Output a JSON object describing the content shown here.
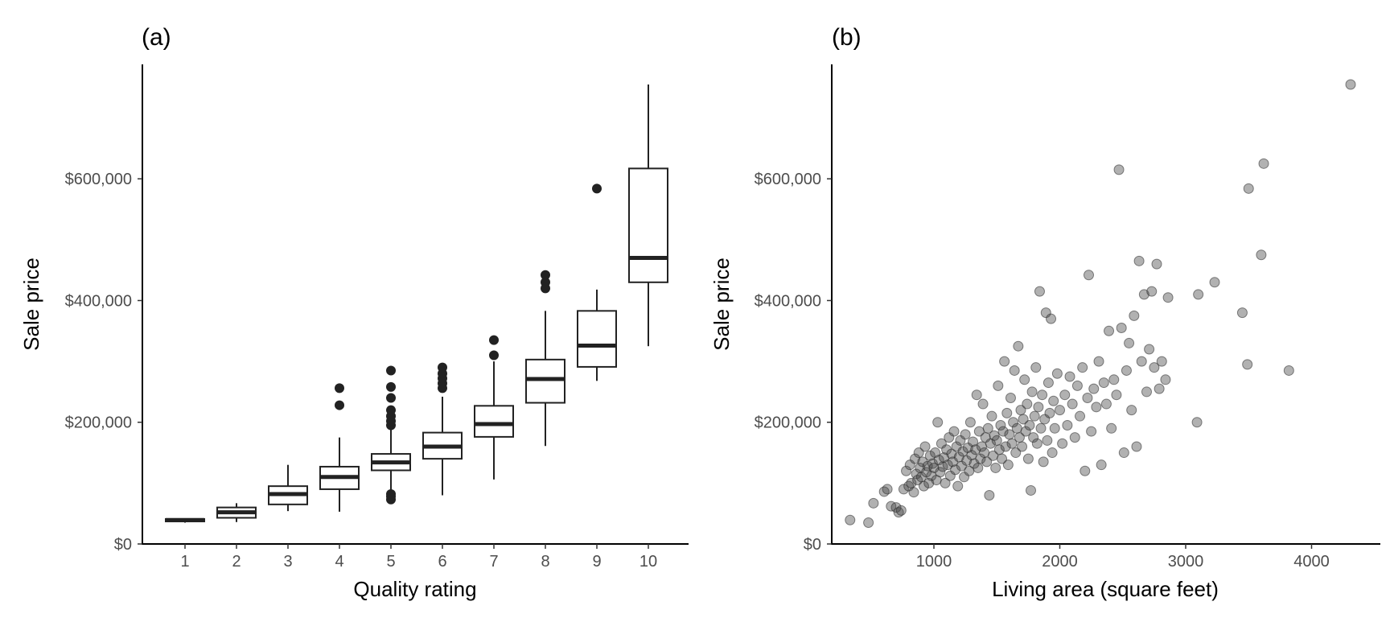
{
  "chart_data": [
    {
      "type": "box",
      "panel_label": "(a)",
      "xlabel": "Quality rating",
      "ylabel": "Sale price",
      "ylim": [
        0,
        755000
      ],
      "y_ticks": [
        0,
        200000,
        400000,
        600000
      ],
      "y_tick_labels": [
        "$0",
        "$200,000",
        "$400,000",
        "$600,000"
      ],
      "categories": [
        "1",
        "2",
        "3",
        "4",
        "5",
        "6",
        "7",
        "8",
        "9",
        "10"
      ],
      "boxes": [
        {
          "q1": 37000,
          "median": 39300,
          "q3": 41000,
          "whisker_low": 35000,
          "whisker_high": 42000,
          "outliers": []
        },
        {
          "q1": 43000,
          "median": 52000,
          "q3": 60000,
          "whisker_low": 36000,
          "whisker_high": 67000,
          "outliers": []
        },
        {
          "q1": 65000,
          "median": 82000,
          "q3": 95000,
          "whisker_low": 54000,
          "whisker_high": 130000,
          "outliers": []
        },
        {
          "q1": 90000,
          "median": 110000,
          "q3": 127000,
          "whisker_low": 53000,
          "whisker_high": 175000,
          "outliers": [
            228000,
            256000
          ]
        },
        {
          "q1": 121000,
          "median": 134000,
          "q3": 148000,
          "whisker_low": 85000,
          "whisker_high": 190000,
          "outliers": [
            73000,
            78000,
            82000,
            195000,
            202000,
            210000,
            220000,
            240000,
            258000,
            285000
          ]
        },
        {
          "q1": 140000,
          "median": 160000,
          "q3": 183000,
          "whisker_low": 80000,
          "whisker_high": 242000,
          "outliers": [
            256000,
            264000,
            272000,
            280000,
            290000
          ]
        },
        {
          "q1": 176000,
          "median": 197000,
          "q3": 227000,
          "whisker_low": 106000,
          "whisker_high": 300000,
          "outliers": [
            310000,
            335000
          ]
        },
        {
          "q1": 232000,
          "median": 271000,
          "q3": 303000,
          "whisker_low": 161000,
          "whisker_high": 383000,
          "outliers": [
            420000,
            430000,
            442000
          ]
        },
        {
          "q1": 291000,
          "median": 326000,
          "q3": 383000,
          "whisker_low": 268000,
          "whisker_high": 418000,
          "outliers": [
            584000
          ]
        },
        {
          "q1": 430000,
          "median": 470000,
          "q3": 617000,
          "whisker_low": 325000,
          "whisker_high": 755000,
          "outliers": []
        }
      ]
    },
    {
      "type": "scatter",
      "panel_label": "(b)",
      "xlabel": "Living area (square feet)",
      "ylabel": "Sale price",
      "xlim": [
        300,
        4400
      ],
      "ylim": [
        0,
        755000
      ],
      "x_ticks": [
        1000,
        2000,
        3000,
        4000
      ],
      "x_tick_labels": [
        "1000",
        "2000",
        "3000",
        "4000"
      ],
      "y_ticks": [
        0,
        200000,
        400000,
        600000
      ],
      "y_tick_labels": [
        "$0",
        "$200,000",
        "$400,000",
        "$600,000"
      ],
      "points": [
        [
          334,
          39300
        ],
        [
          480,
          35000
        ],
        [
          520,
          67000
        ],
        [
          605,
          86000
        ],
        [
          630,
          90000
        ],
        [
          660,
          62000
        ],
        [
          700,
          60000
        ],
        [
          720,
          52000
        ],
        [
          740,
          55000
        ],
        [
          760,
          90000
        ],
        [
          780,
          120000
        ],
        [
          800,
          95000
        ],
        [
          810,
          130000
        ],
        [
          820,
          100000
        ],
        [
          840,
          85000
        ],
        [
          850,
          140000
        ],
        [
          860,
          115000
        ],
        [
          870,
          105000
        ],
        [
          880,
          150000
        ],
        [
          890,
          125000
        ],
        [
          900,
          110000
        ],
        [
          910,
          135000
        ],
        [
          920,
          95000
        ],
        [
          930,
          160000
        ],
        [
          940,
          118000
        ],
        [
          950,
          128000
        ],
        [
          960,
          100000
        ],
        [
          970,
          145000
        ],
        [
          980,
          112000
        ],
        [
          990,
          132000
        ],
        [
          1000,
          125000
        ],
        [
          1010,
          150000
        ],
        [
          1020,
          105000
        ],
        [
          1030,
          200000
        ],
        [
          1040,
          138000
        ],
        [
          1050,
          118000
        ],
        [
          1060,
          165000
        ],
        [
          1070,
          127000
        ],
        [
          1080,
          142000
        ],
        [
          1090,
          100000
        ],
        [
          1100,
          155000
        ],
        [
          1110,
          130000
        ],
        [
          1120,
          175000
        ],
        [
          1130,
          112000
        ],
        [
          1140,
          148000
        ],
        [
          1150,
          135000
        ],
        [
          1160,
          185000
        ],
        [
          1170,
          122000
        ],
        [
          1180,
          160000
        ],
        [
          1190,
          95000
        ],
        [
          1200,
          143000
        ],
        [
          1210,
          170000
        ],
        [
          1220,
          128000
        ],
        [
          1230,
          152000
        ],
        [
          1240,
          110000
        ],
        [
          1250,
          180000
        ],
        [
          1260,
          137000
        ],
        [
          1270,
          158000
        ],
        [
          1280,
          120000
        ],
        [
          1290,
          200000
        ],
        [
          1300,
          146000
        ],
        [
          1310,
          168000
        ],
        [
          1320,
          132000
        ],
        [
          1330,
          155000
        ],
        [
          1340,
          245000
        ],
        [
          1350,
          125000
        ],
        [
          1360,
          185000
        ],
        [
          1370,
          140000
        ],
        [
          1380,
          160000
        ],
        [
          1390,
          230000
        ],
        [
          1400,
          150000
        ],
        [
          1410,
          175000
        ],
        [
          1420,
          135000
        ],
        [
          1430,
          190000
        ],
        [
          1440,
          80000
        ],
        [
          1450,
          165000
        ],
        [
          1460,
          210000
        ],
        [
          1470,
          145000
        ],
        [
          1480,
          178000
        ],
        [
          1490,
          125000
        ],
        [
          1500,
          170000
        ],
        [
          1510,
          260000
        ],
        [
          1520,
          155000
        ],
        [
          1530,
          195000
        ],
        [
          1540,
          140000
        ],
        [
          1550,
          185000
        ],
        [
          1560,
          300000
        ],
        [
          1570,
          160000
        ],
        [
          1580,
          215000
        ],
        [
          1590,
          130000
        ],
        [
          1600,
          180000
        ],
        [
          1610,
          240000
        ],
        [
          1620,
          165000
        ],
        [
          1630,
          200000
        ],
        [
          1640,
          285000
        ],
        [
          1650,
          150000
        ],
        [
          1660,
          190000
        ],
        [
          1670,
          325000
        ],
        [
          1680,
          175000
        ],
        [
          1690,
          220000
        ],
        [
          1700,
          160000
        ],
        [
          1710,
          205000
        ],
        [
          1720,
          270000
        ],
        [
          1730,
          185000
        ],
        [
          1740,
          230000
        ],
        [
          1750,
          140000
        ],
        [
          1760,
          195000
        ],
        [
          1770,
          88000
        ],
        [
          1780,
          250000
        ],
        [
          1790,
          175000
        ],
        [
          1800,
          210000
        ],
        [
          1810,
          290000
        ],
        [
          1820,
          165000
        ],
        [
          1830,
          225000
        ],
        [
          1840,
          415000
        ],
        [
          1850,
          190000
        ],
        [
          1860,
          245000
        ],
        [
          1870,
          135000
        ],
        [
          1880,
          205000
        ],
        [
          1890,
          380000
        ],
        [
          1900,
          170000
        ],
        [
          1910,
          265000
        ],
        [
          1920,
          215000
        ],
        [
          1930,
          370000
        ],
        [
          1940,
          150000
        ],
        [
          1950,
          235000
        ],
        [
          1960,
          190000
        ],
        [
          1980,
          280000
        ],
        [
          2000,
          220000
        ],
        [
          2020,
          165000
        ],
        [
          2040,
          245000
        ],
        [
          2060,
          195000
        ],
        [
          2080,
          275000
        ],
        [
          2100,
          230000
        ],
        [
          2120,
          175000
        ],
        [
          2140,
          260000
        ],
        [
          2160,
          210000
        ],
        [
          2180,
          290000
        ],
        [
          2200,
          120000
        ],
        [
          2220,
          240000
        ],
        [
          2230,
          442000
        ],
        [
          2250,
          185000
        ],
        [
          2270,
          255000
        ],
        [
          2290,
          225000
        ],
        [
          2310,
          300000
        ],
        [
          2330,
          130000
        ],
        [
          2350,
          265000
        ],
        [
          2370,
          230000
        ],
        [
          2390,
          350000
        ],
        [
          2410,
          190000
        ],
        [
          2430,
          270000
        ],
        [
          2450,
          245000
        ],
        [
          2470,
          615000
        ],
        [
          2490,
          355000
        ],
        [
          2510,
          150000
        ],
        [
          2530,
          285000
        ],
        [
          2550,
          330000
        ],
        [
          2570,
          220000
        ],
        [
          2590,
          375000
        ],
        [
          2610,
          160000
        ],
        [
          2630,
          465000
        ],
        [
          2650,
          300000
        ],
        [
          2670,
          410000
        ],
        [
          2690,
          250000
        ],
        [
          2710,
          320000
        ],
        [
          2730,
          415000
        ],
        [
          2750,
          290000
        ],
        [
          2770,
          460000
        ],
        [
          2790,
          255000
        ],
        [
          2810,
          300000
        ],
        [
          2840,
          270000
        ],
        [
          2860,
          405000
        ],
        [
          3090,
          200000
        ],
        [
          3100,
          410000
        ],
        [
          3230,
          430000
        ],
        [
          3450,
          380000
        ],
        [
          3490,
          295000
        ],
        [
          3500,
          584000
        ],
        [
          3600,
          475000
        ],
        [
          3620,
          625000
        ],
        [
          3820,
          285000
        ],
        [
          4310,
          755000
        ]
      ]
    }
  ]
}
